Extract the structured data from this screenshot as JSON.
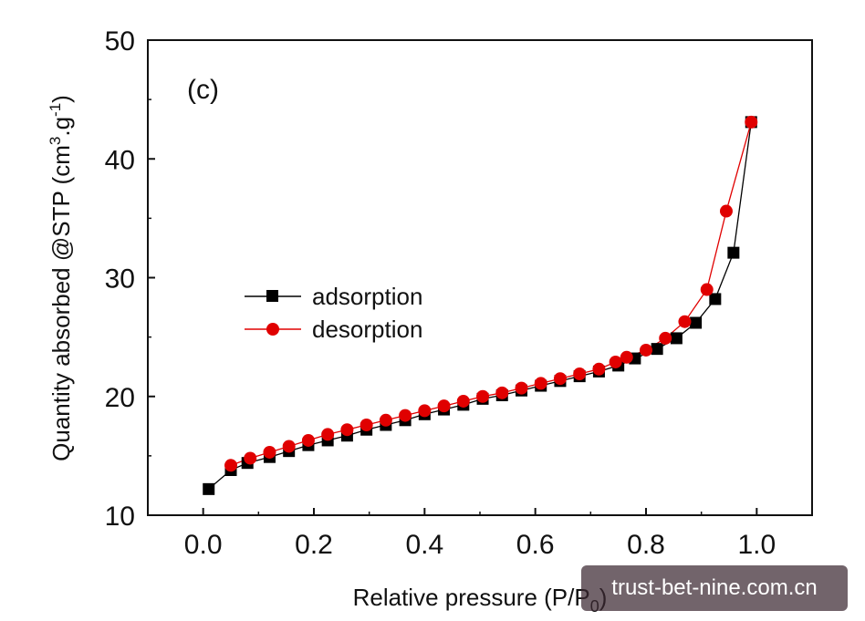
{
  "chart_data": {
    "type": "line",
    "panel_label": "(c)",
    "xlabel": "Relative pressure (P/P",
    "xlabel_sub": "0",
    "xlabel_close": ")",
    "ylabel": "Quantity absorbed @STP (cm",
    "ylabel_sup1": "3",
    "ylabel_mid": ".g",
    "ylabel_sup2": "-1",
    "ylabel_close": ")",
    "xlim": [
      -0.1,
      1.1
    ],
    "ylim": [
      10,
      50
    ],
    "xticks": [
      "0.0",
      "0.2",
      "0.4",
      "0.6",
      "0.8",
      "1.0"
    ],
    "xtick_values": [
      0.0,
      0.2,
      0.4,
      0.6,
      0.8,
      1.0
    ],
    "yticks": [
      "10",
      "20",
      "30",
      "40",
      "50"
    ],
    "ytick_values": [
      10,
      20,
      30,
      40,
      50
    ],
    "legend_position": "center-left",
    "series": [
      {
        "name": "adsorption",
        "color": "#000000",
        "marker": "square",
        "x": [
          0.01,
          0.05,
          0.08,
          0.12,
          0.155,
          0.19,
          0.225,
          0.26,
          0.295,
          0.33,
          0.365,
          0.4,
          0.435,
          0.47,
          0.505,
          0.54,
          0.575,
          0.61,
          0.645,
          0.68,
          0.715,
          0.75,
          0.78,
          0.82,
          0.855,
          0.89,
          0.925,
          0.958,
          0.99
        ],
        "y": [
          12.2,
          13.8,
          14.4,
          14.9,
          15.4,
          15.9,
          16.3,
          16.7,
          17.2,
          17.6,
          18.0,
          18.5,
          18.9,
          19.3,
          19.8,
          20.1,
          20.5,
          20.9,
          21.3,
          21.7,
          22.1,
          22.6,
          23.2,
          24.0,
          24.9,
          26.2,
          28.2,
          32.1,
          43.1
        ]
      },
      {
        "name": "desorption",
        "color": "#e00000",
        "marker": "circle",
        "x": [
          0.05,
          0.085,
          0.12,
          0.155,
          0.19,
          0.225,
          0.26,
          0.295,
          0.33,
          0.365,
          0.4,
          0.435,
          0.47,
          0.505,
          0.54,
          0.575,
          0.61,
          0.645,
          0.68,
          0.715,
          0.745,
          0.765,
          0.8,
          0.835,
          0.87,
          0.91,
          0.945,
          0.99
        ],
        "y": [
          14.2,
          14.8,
          15.3,
          15.8,
          16.3,
          16.8,
          17.2,
          17.6,
          18.0,
          18.4,
          18.8,
          19.2,
          19.6,
          20.0,
          20.3,
          20.7,
          21.1,
          21.5,
          21.9,
          22.3,
          22.9,
          23.3,
          23.9,
          24.9,
          26.3,
          29.0,
          35.6,
          43.1
        ]
      }
    ]
  },
  "watermark": "trust-bet-nine.com.cn"
}
